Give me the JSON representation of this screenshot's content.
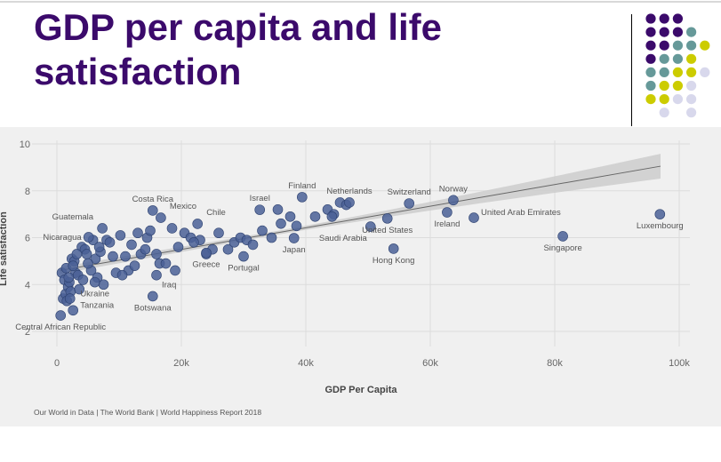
{
  "slide": {
    "title": "GDP per capita and life satisfaction",
    "decor_colors": {
      "P": "#3b0a6b",
      "T": "#669999",
      "Y": "#cccc00",
      "L": "#d8d8ec"
    },
    "decor_rows": [
      "PPP..",
      "PPPT.",
      "PPTTY",
      "PTTY.",
      "TTYYL",
      "TYYL.",
      "YYLL.",
      ".L.L."
    ]
  },
  "chart_data": {
    "type": "scatter",
    "title": "",
    "xlabel": "GDP Per Capita",
    "ylabel": "Life satisfaction",
    "xlim": [
      0,
      100000
    ],
    "ylim": [
      2,
      10
    ],
    "xticks": [
      0,
      20000,
      40000,
      60000,
      80000,
      100000
    ],
    "xtick_labels": [
      "0",
      "20k",
      "40k",
      "60k",
      "80k",
      "100k"
    ],
    "yticks": [
      2,
      4,
      6,
      8,
      10
    ],
    "ytick_labels": [
      "2",
      "4",
      "6",
      "8",
      "10"
    ],
    "grid": true,
    "marker_color": "#4a6096",
    "trend": {
      "x": [
        500,
        97000
      ],
      "y": [
        4.6,
        9.05
      ],
      "ci_halfwidth_start": 0.15,
      "ci_halfwidth_mid": 0.08,
      "ci_halfwidth_end": 0.53,
      "line_color": "#666666",
      "band_color": "#cccccc"
    },
    "labeled_points": [
      {
        "name": "Finland",
        "x": 39400,
        "y": 7.73,
        "label_pos": "above"
      },
      {
        "name": "Netherlands",
        "x": 47000,
        "y": 7.5,
        "label_pos": "above"
      },
      {
        "name": "Switzerland",
        "x": 56600,
        "y": 7.46,
        "label_pos": "above"
      },
      {
        "name": "Norway",
        "x": 63700,
        "y": 7.6,
        "label_pos": "above"
      },
      {
        "name": "Ireland",
        "x": 62700,
        "y": 7.08,
        "label_pos": "below"
      },
      {
        "name": "United Arab Emirates",
        "x": 67000,
        "y": 6.85,
        "label_pos": "right"
      },
      {
        "name": "Luxembourg",
        "x": 96900,
        "y": 7.0,
        "label_pos": "below"
      },
      {
        "name": "Singapore",
        "x": 81300,
        "y": 6.06,
        "label_pos": "below"
      },
      {
        "name": "Hong Kong",
        "x": 54100,
        "y": 5.53,
        "label_pos": "below"
      },
      {
        "name": "United States",
        "x": 53100,
        "y": 6.82,
        "label_pos": "below"
      },
      {
        "name": "Saudi Arabia",
        "x": 50400,
        "y": 6.47,
        "label_pos": "below-left"
      },
      {
        "name": "Japan",
        "x": 38100,
        "y": 5.98,
        "label_pos": "below"
      },
      {
        "name": "Israel",
        "x": 32600,
        "y": 7.19,
        "label_pos": "above"
      },
      {
        "name": "Portugal",
        "x": 30000,
        "y": 5.2,
        "label_pos": "below"
      },
      {
        "name": "Greece",
        "x": 24000,
        "y": 5.35,
        "label_pos": "below"
      },
      {
        "name": "Chile",
        "x": 22600,
        "y": 6.59,
        "label_pos": "above-right"
      },
      {
        "name": "Mexico",
        "x": 16700,
        "y": 6.85,
        "label_pos": "above-right"
      },
      {
        "name": "Costa Rica",
        "x": 15400,
        "y": 7.16,
        "label_pos": "above"
      },
      {
        "name": "Guatemala",
        "x": 7300,
        "y": 6.4,
        "label_pos": "above-left"
      },
      {
        "name": "Nicaragua",
        "x": 5100,
        "y": 6.02,
        "label_pos": "left"
      },
      {
        "name": "Ukraine",
        "x": 6100,
        "y": 4.1,
        "label_pos": "below"
      },
      {
        "name": "Tanzania",
        "x": 2600,
        "y": 2.9,
        "label_pos": "right"
      },
      {
        "name": "Central African Republic",
        "x": 600,
        "y": 2.68,
        "label_pos": "below"
      },
      {
        "name": "Botswana",
        "x": 15400,
        "y": 3.5,
        "label_pos": "below"
      },
      {
        "name": "Iraq",
        "x": 16000,
        "y": 4.4,
        "label_pos": "below-right"
      }
    ],
    "points": [
      [
        800,
        4.5
      ],
      [
        1200,
        4.2
      ],
      [
        1500,
        4.7
      ],
      [
        1000,
        3.4
      ],
      [
        1400,
        3.6
      ],
      [
        1800,
        3.9
      ],
      [
        2000,
        4.1
      ],
      [
        2200,
        3.7
      ],
      [
        1600,
        3.3
      ],
      [
        2400,
        5.1
      ],
      [
        2800,
        5.0
      ],
      [
        3000,
        4.5
      ],
      [
        3400,
        4.4
      ],
      [
        2600,
        4.8
      ],
      [
        3600,
        3.8
      ],
      [
        1900,
        4.3
      ],
      [
        2100,
        3.4
      ],
      [
        4000,
        5.6
      ],
      [
        4500,
        5.5
      ],
      [
        5500,
        4.6
      ],
      [
        5800,
        5.9
      ],
      [
        4800,
        5.3
      ],
      [
        6200,
        5.1
      ],
      [
        7000,
        5.4
      ],
      [
        7500,
        4.0
      ],
      [
        6800,
        5.6
      ],
      [
        8000,
        5.9
      ],
      [
        8500,
        5.8
      ],
      [
        9000,
        5.2
      ],
      [
        9500,
        4.5
      ],
      [
        10200,
        6.1
      ],
      [
        11000,
        5.2
      ],
      [
        11500,
        4.6
      ],
      [
        12000,
        5.7
      ],
      [
        13000,
        6.2
      ],
      [
        13500,
        5.3
      ],
      [
        14200,
        5.5
      ],
      [
        14500,
        6.0
      ],
      [
        15000,
        6.3
      ],
      [
        16000,
        5.3
      ],
      [
        16500,
        4.9
      ],
      [
        17500,
        4.9
      ],
      [
        18500,
        6.4
      ],
      [
        19500,
        5.6
      ],
      [
        20500,
        6.2
      ],
      [
        21500,
        6.0
      ],
      [
        23000,
        5.9
      ],
      [
        24000,
        5.3
      ],
      [
        25000,
        5.5
      ],
      [
        26000,
        6.2
      ],
      [
        27500,
        5.5
      ],
      [
        28500,
        5.8
      ],
      [
        29500,
        6.0
      ],
      [
        30500,
        5.9
      ],
      [
        33000,
        6.3
      ],
      [
        34500,
        6.0
      ],
      [
        35500,
        7.2
      ],
      [
        36000,
        6.6
      ],
      [
        37500,
        6.9
      ],
      [
        38500,
        6.5
      ],
      [
        41500,
        6.9
      ],
      [
        43500,
        7.2
      ],
      [
        44500,
        7.0
      ],
      [
        44200,
        6.9
      ],
      [
        45500,
        7.5
      ],
      [
        46500,
        7.4
      ],
      [
        4200,
        4.2
      ],
      [
        5000,
        4.9
      ],
      [
        10500,
        4.4
      ],
      [
        12500,
        4.8
      ],
      [
        3200,
        5.3
      ],
      [
        6500,
        4.3
      ],
      [
        19000,
        4.6
      ],
      [
        22000,
        5.8
      ],
      [
        31500,
        5.7
      ]
    ],
    "source": "Our World in Data | The World Bank | World Happiness Report 2018"
  }
}
